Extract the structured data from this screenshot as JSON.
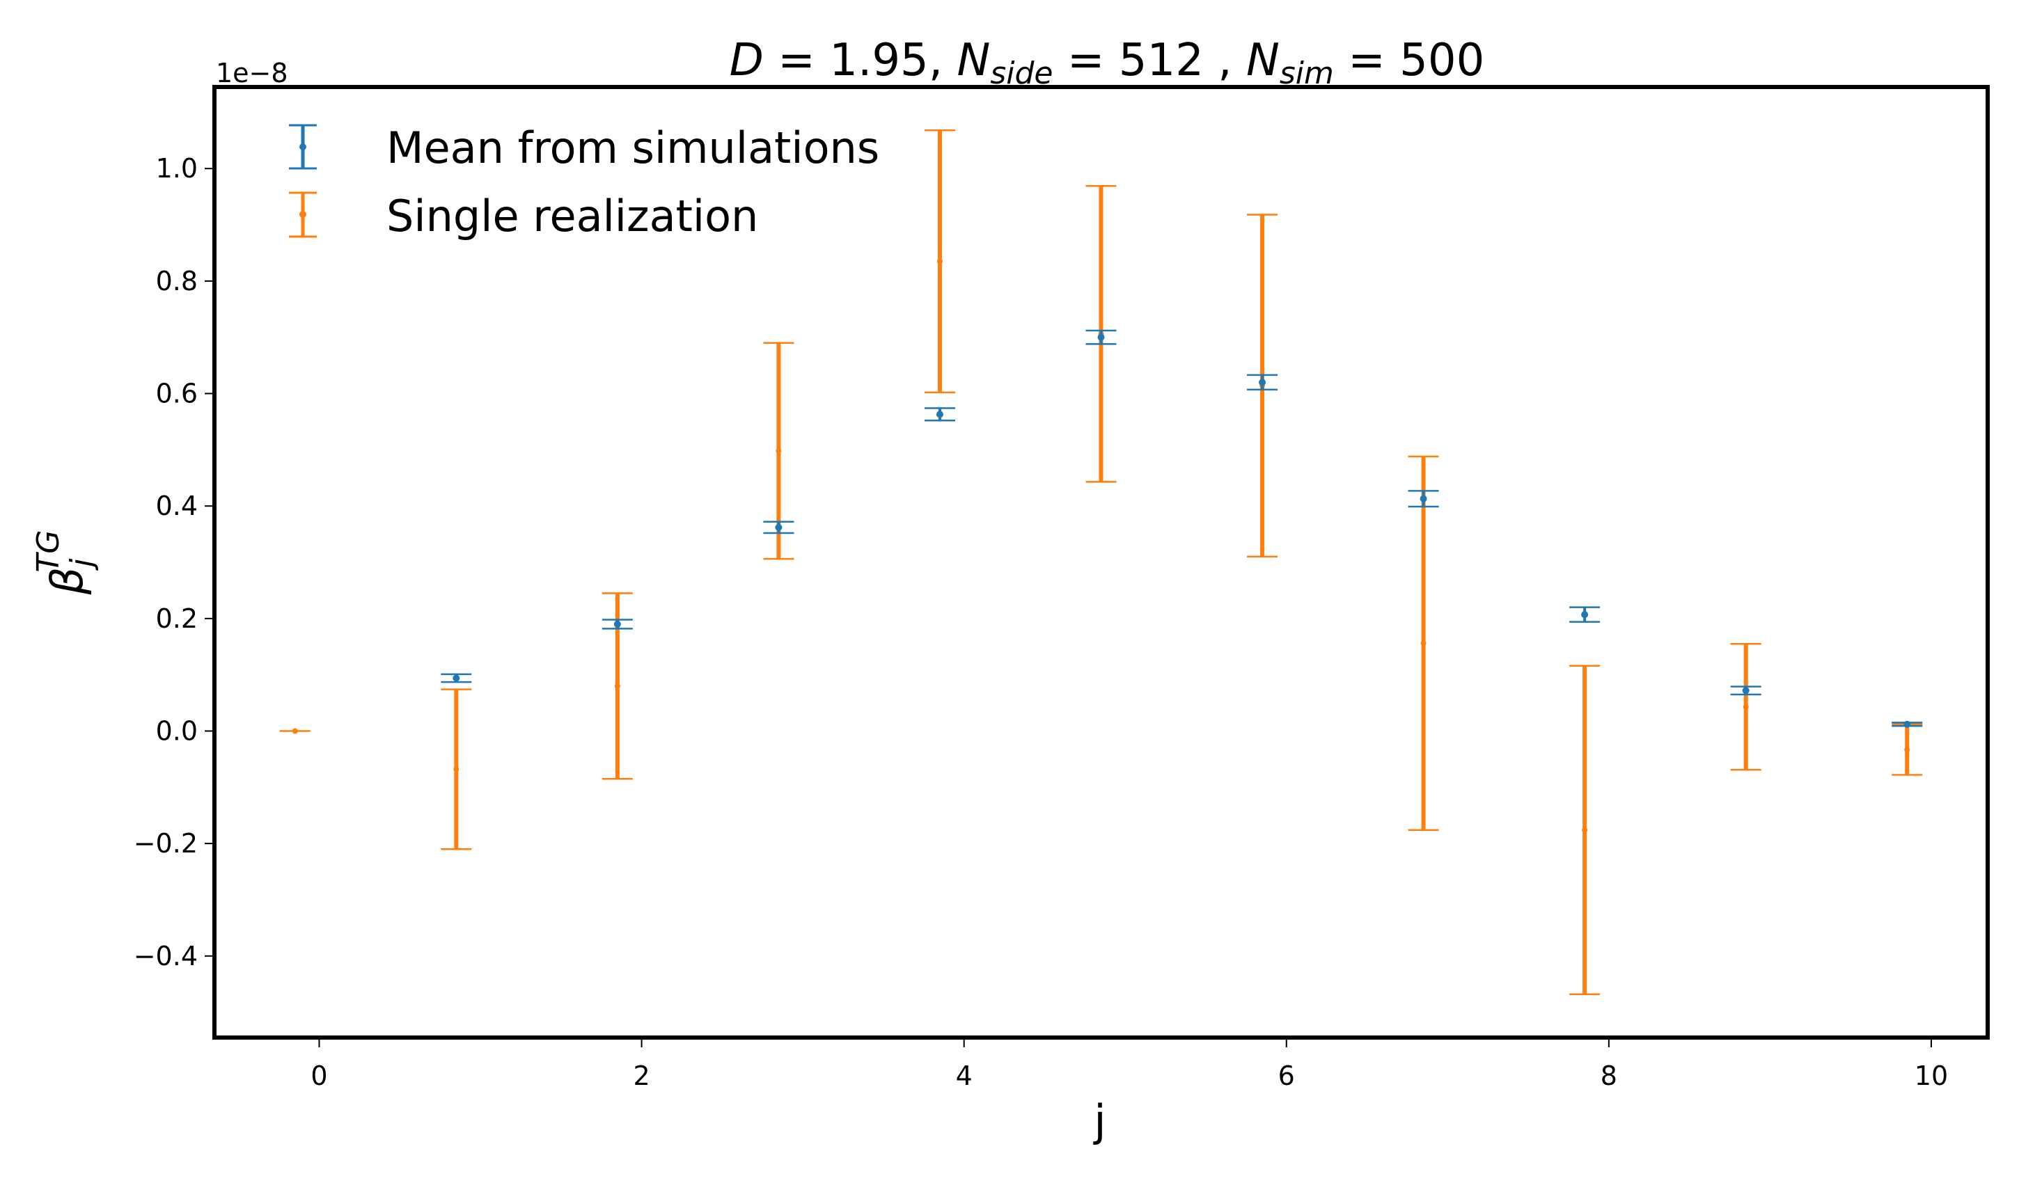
{
  "chart_data": {
    "type": "errorbar",
    "title_parts": {
      "d_sym": "D",
      "d_val": " = 1.95, ",
      "nside_sym": "N",
      "nside_sub": "side",
      "nside_val": " = 512 , ",
      "nsim_sym": "N",
      "nsim_sub": "sim",
      "nsim_val": " = 500"
    },
    "xlabel": "j",
    "ylabel_symbol": "β",
    "ylabel_sub": "j",
    "ylabel_sup": "TG",
    "y_multiplier": "1e−8",
    "xlim": [
      -0.65,
      10.35
    ],
    "ylim": [
      -0.545,
      1.145
    ],
    "xticks": [
      0,
      2,
      4,
      6,
      8,
      10
    ],
    "xtick_labels": [
      "0",
      "2",
      "4",
      "6",
      "8",
      "10"
    ],
    "yticks": [
      -0.4,
      -0.2,
      0.0,
      0.2,
      0.4,
      0.6,
      0.8,
      1.0
    ],
    "ytick_labels": [
      "−0.4",
      "−0.2",
      "0.0",
      "0.2",
      "0.4",
      "0.6",
      "0.8",
      "1.0"
    ],
    "legend_position": "top-left",
    "series": [
      {
        "name": "Mean from simulations",
        "color": "#1f77b4",
        "x": [
          0.85,
          1.85,
          2.85,
          3.85,
          4.85,
          5.85,
          6.85,
          7.85,
          8.85,
          9.85
        ],
        "y": [
          0.094,
          0.19,
          0.362,
          0.563,
          0.7,
          0.62,
          0.413,
          0.207,
          0.072,
          0.012
        ],
        "err": [
          0.007,
          0.008,
          0.01,
          0.011,
          0.012,
          0.013,
          0.014,
          0.013,
          0.007,
          0.003
        ]
      },
      {
        "name": "Single realization",
        "color": "#ff7f0e",
        "x": [
          -0.15,
          0.85,
          1.85,
          2.85,
          3.85,
          4.85,
          5.85,
          6.85,
          7.85,
          8.85,
          9.85
        ],
        "y": [
          0.0,
          -0.068,
          0.08,
          0.498,
          0.835,
          0.706,
          0.614,
          0.156,
          -0.176,
          0.043,
          -0.033
        ],
        "err": [
          0.0,
          0.142,
          0.165,
          0.192,
          0.233,
          0.263,
          0.304,
          0.332,
          0.292,
          0.112,
          0.045
        ]
      }
    ]
  }
}
